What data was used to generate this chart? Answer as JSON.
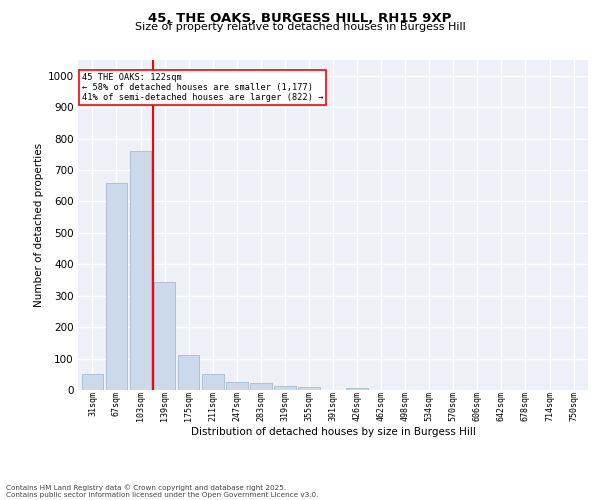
{
  "title1": "45, THE OAKS, BURGESS HILL, RH15 9XP",
  "title2": "Size of property relative to detached houses in Burgess Hill",
  "xlabel": "Distribution of detached houses by size in Burgess Hill",
  "ylabel": "Number of detached properties",
  "bar_color": "#ccd9ea",
  "bar_edgecolor": "#9ab4cc",
  "redline_label": "45 THE OAKS: 122sqm",
  "annotation_line1": "← 58% of detached houses are smaller (1,177)",
  "annotation_line2": "41% of semi-detached houses are larger (822) →",
  "categories": [
    "31sqm",
    "67sqm",
    "103sqm",
    "139sqm",
    "175sqm",
    "211sqm",
    "247sqm",
    "283sqm",
    "319sqm",
    "355sqm",
    "391sqm",
    "426sqm",
    "462sqm",
    "498sqm",
    "534sqm",
    "570sqm",
    "606sqm",
    "642sqm",
    "678sqm",
    "714sqm",
    "750sqm"
  ],
  "values": [
    52,
    660,
    760,
    345,
    110,
    50,
    27,
    22,
    12,
    8,
    0,
    5,
    0,
    0,
    0,
    0,
    0,
    0,
    0,
    0,
    0
  ],
  "ylim": [
    0,
    1050
  ],
  "yticks": [
    0,
    100,
    200,
    300,
    400,
    500,
    600,
    700,
    800,
    900,
    1000
  ],
  "bg_color": "#edf1f7",
  "footer1": "Contains HM Land Registry data © Crown copyright and database right 2025.",
  "footer2": "Contains public sector information licensed under the Open Government Licence v3.0."
}
